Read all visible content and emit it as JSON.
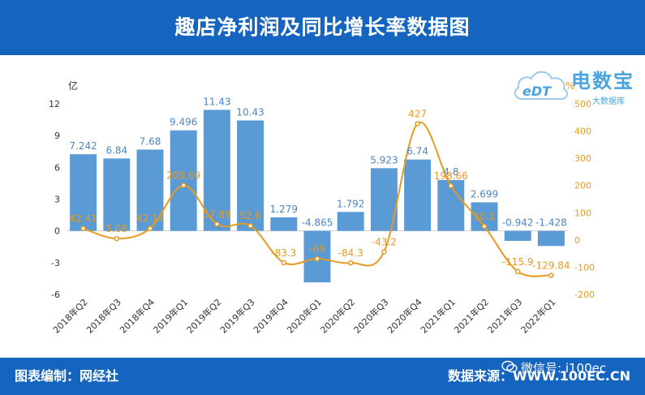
{
  "header": {
    "title": "趣店净利润及同比增长率数据图"
  },
  "footer": {
    "left_label": "图表编制：网经社",
    "right_label": "数据来源：WWW.100EC.CN"
  },
  "logo": {
    "brand": "电数宝",
    "sub": "大数据库",
    "badge": "eDT"
  },
  "wechat": {
    "label": "微信号: i100ec"
  },
  "colors": {
    "bar": "#5b9bd5",
    "bar_label": "#4a86c5",
    "line": "#e69a1f",
    "line_label": "#e69a1f",
    "header_bg": "#1565c0"
  },
  "chart_data": {
    "type": "bar+line",
    "categories": [
      "2018年Q2",
      "2018年Q3",
      "2018年Q4",
      "2019年Q1",
      "2019年Q2",
      "2019年Q3",
      "2019年Q4",
      "2020年Q1",
      "2020年Q2",
      "2020年Q3",
      "2020年Q4",
      "2021年Q1",
      "2021年Q2",
      "2021年Q3",
      "2022年Q1"
    ],
    "series": [
      {
        "values": [
          7.242,
          6.84,
          7.68,
          9.496,
          11.43,
          10.43,
          1.279,
          -4.865,
          1.792,
          5.923,
          6.74,
          4.8,
          2.699,
          -0.942,
          -1.428
        ],
        "labels": [
          "7.242",
          "6.84",
          "7.68",
          "9.496",
          "11.43",
          "10.43",
          "1.279",
          "-4.865",
          "1.792",
          "5.923",
          "6.74",
          "4.8",
          "2.699",
          "-0.942",
          "-1.428"
        ]
      },
      {
        "values": [
          42.41,
          5.08,
          42.14,
          200.69,
          57.89,
          52.6,
          -83.3,
          -69,
          -84.3,
          -43.2,
          427,
          198.66,
          50.1,
          -115.9,
          -129.84
        ],
        "labels": [
          "42.41",
          "5.08",
          "42.14",
          "200.69",
          "57.89",
          "52.6",
          "-83.3",
          "-69",
          "-84.3",
          "-43.2",
          "427",
          "198.66",
          "50.1",
          "-115.9",
          "-129.84"
        ]
      }
    ],
    "y_left": {
      "unit": "亿",
      "ylim": [
        -6,
        12
      ],
      "ticks": [
        "12",
        "9",
        "6",
        "3",
        "0",
        "-3",
        "-6"
      ]
    },
    "y_right": {
      "unit": "%",
      "ylim": [
        -200,
        500
      ],
      "ticks": [
        "500",
        "400",
        "300",
        "200",
        "100",
        "0",
        "-100",
        "-200"
      ]
    },
    "grid": false
  }
}
